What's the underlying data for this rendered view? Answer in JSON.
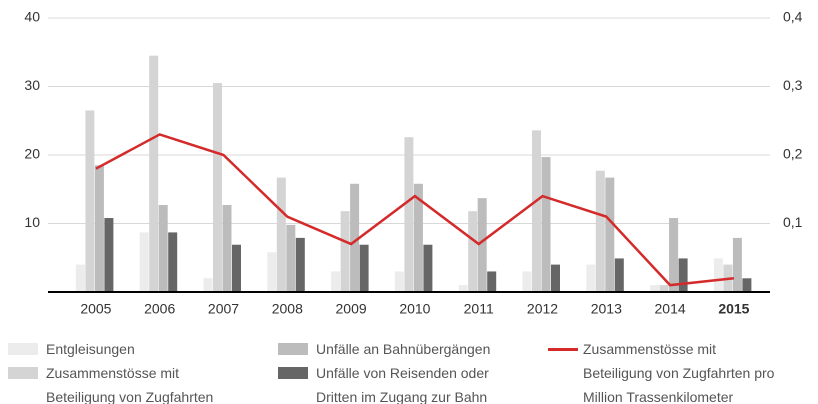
{
  "chart_data": {
    "type": "bar",
    "categories": [
      "2005",
      "2006",
      "2007",
      "2008",
      "2009",
      "2010",
      "2011",
      "2012",
      "2013",
      "2014",
      "2015"
    ],
    "bold_index": 10,
    "series": [
      {
        "name": "Entgleisungen",
        "color": "#ececec",
        "values": [
          4,
          8.7,
          2,
          5.8,
          3,
          3,
          1,
          3,
          4,
          1,
          4.9
        ]
      },
      {
        "name": "Zusammenstösse mit Beteiligung von Zugfahrten",
        "color": "#d4d4d4",
        "values": [
          26.5,
          34.5,
          30.5,
          16.7,
          11.8,
          22.6,
          11.8,
          23.6,
          17.7,
          1,
          4
        ]
      },
      {
        "name": "Unfälle an Bahnübergängen",
        "color": "#bcbcbc",
        "values": [
          18.5,
          12.7,
          12.7,
          9.8,
          15.8,
          15.8,
          13.7,
          19.7,
          16.7,
          10.8,
          7.9
        ]
      },
      {
        "name": "Unfälle von Reisenden oder Dritten im Zugang zur Bahn",
        "color": "#666666",
        "values": [
          10.8,
          8.7,
          6.9,
          7.9,
          6.9,
          6.9,
          3,
          4,
          4.9,
          4.9,
          2
        ]
      },
      {
        "name": "Zusammenstösse mit Beteiligung von Zugfahrten pro Million Trassenkilometer",
        "color": "#d42a2a",
        "type": "line",
        "axis": "y2",
        "values": [
          0.18,
          0.23,
          0.2,
          0.11,
          0.07,
          0.14,
          0.07,
          0.14,
          0.11,
          0.01,
          0.02
        ]
      }
    ],
    "ylim": [
      0,
      40
    ],
    "yticks": [
      10,
      20,
      30,
      40
    ],
    "y2lim": [
      0,
      0.4
    ],
    "y2ticks": [
      {
        "value": 0.1,
        "label": "0,1"
      },
      {
        "value": 0.2,
        "label": "0,2"
      },
      {
        "value": 0.3,
        "label": "0,3"
      },
      {
        "value": 0.4,
        "label": "0,4"
      }
    ],
    "grid": true
  }
}
